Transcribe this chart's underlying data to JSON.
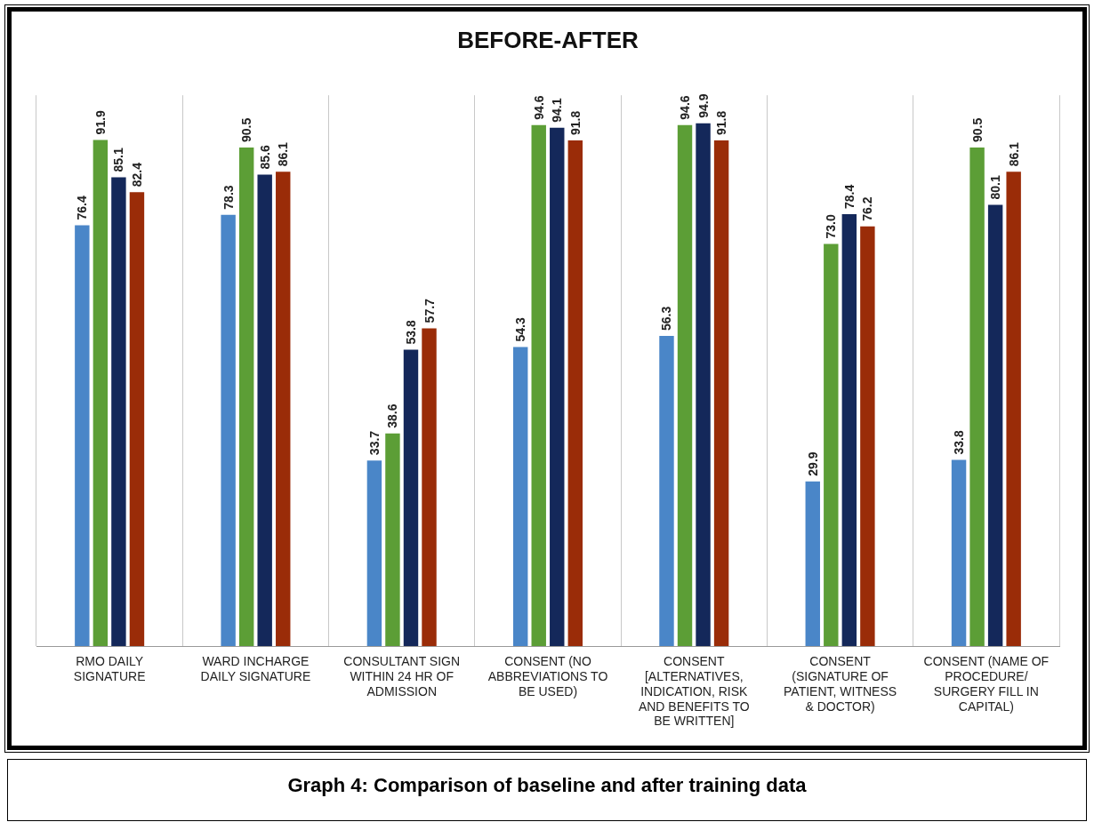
{
  "chart_data": {
    "type": "bar",
    "title": "BEFORE-AFTER",
    "categories": [
      "RMO DAILY SIGNATURE",
      "WARD INCHARGE DAILY SIGNATURE",
      "CONSULTANT SIGN WITHIN 24 HR OF ADMISSION",
      "CONSENT (NO ABBREVIATIONS TO BE USED)",
      "CONSENT [ALTERNATIVES, INDICATION, RISK AND BENEFITS TO BE WRITTEN]",
      "CONSENT (SIGNATURE OF PATIENT, WITNESS & DOCTOR)",
      "CONSENT (NAME OF PROCEDURE/ SURGERY FILL IN CAPITAL)"
    ],
    "series": [
      {
        "color": "#4a86c8",
        "values": [
          76.4,
          78.3,
          33.7,
          54.3,
          56.3,
          29.9,
          33.8
        ],
        "value_labels": [
          "76.4",
          "78.3",
          "33.7",
          "54.3",
          "56.3",
          "29.9",
          "33.8"
        ]
      },
      {
        "color": "#5c9e36",
        "values": [
          91.9,
          90.5,
          38.6,
          94.6,
          94.6,
          73.0,
          90.5
        ],
        "value_labels": [
          "91.9",
          "90.5",
          "38.6",
          "94.6",
          "94.6",
          "73.0",
          "90.5"
        ]
      },
      {
        "color": "#14285a",
        "values": [
          85.1,
          85.6,
          53.8,
          94.1,
          94.9,
          78.4,
          80.1
        ],
        "value_labels": [
          "85.1",
          "85.6",
          "53.8",
          "94.1",
          "94.9",
          "78.4",
          "80.1"
        ]
      },
      {
        "color": "#9a2c08",
        "values": [
          82.4,
          86.1,
          57.7,
          91.8,
          91.8,
          76.2,
          86.1
        ],
        "value_labels": [
          "82.4",
          "86.1",
          "57.7",
          "91.8",
          "91.8",
          "76.2",
          "86.1"
        ]
      }
    ],
    "grid": "x",
    "legend": false,
    "annotations": [
      "Graph 4: Comparison of baseline and after training data"
    ]
  }
}
